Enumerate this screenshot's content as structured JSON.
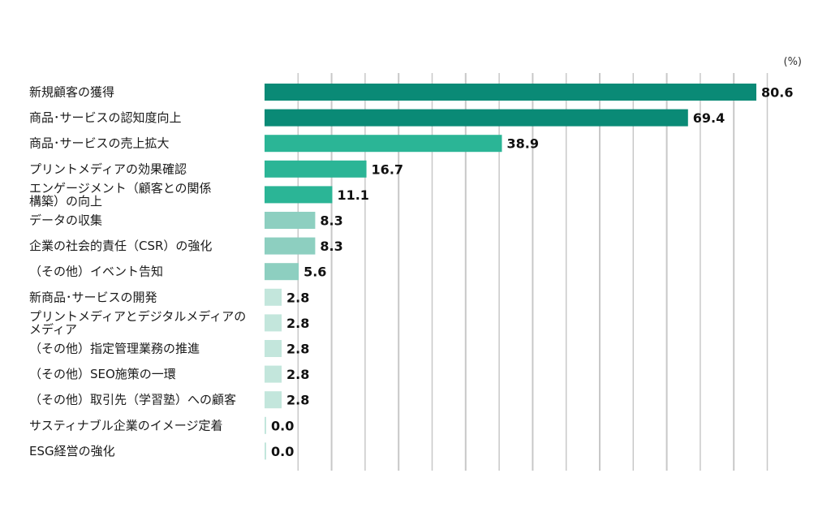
{
  "chart_data": {
    "type": "bar",
    "orientation": "horizontal",
    "unit": "(%)",
    "xlim": [
      0,
      80.6
    ],
    "grid": true,
    "categories": [
      [
        "新規顧客の獲得"
      ],
      [
        "商品･サービスの認知度向上"
      ],
      [
        "商品･サービスの売上拡大"
      ],
      [
        "プリントメディアの効果確認"
      ],
      [
        "エンゲージメント（顧客との関係",
        "構築）の向上"
      ],
      [
        "データの収集"
      ],
      [
        "企業の社会的責任（CSR）の強化"
      ],
      [
        "（その他）イベント告知"
      ],
      [
        "新商品･サービスの開発"
      ],
      [
        "プリントメディアとデジタルメディアの",
        "メディア"
      ],
      [
        "（その他）指定管理業務の推進"
      ],
      [
        "（その他）SEO施策の一環"
      ],
      [
        "（その他）取引先（学習塾）への顧客"
      ],
      [
        "サスティナブル企業のイメージ定着"
      ],
      [
        "ESG経営の強化"
      ]
    ],
    "values": [
      80.6,
      69.4,
      38.9,
      16.7,
      11.1,
      8.3,
      8.3,
      5.6,
      2.8,
      2.8,
      2.8,
      2.8,
      2.8,
      0.0,
      0.0
    ],
    "value_labels": [
      "80.6",
      "69.4",
      "38.9",
      "16.7",
      "11.1",
      "8.3",
      "8.3",
      "5.6",
      "2.8",
      "2.8",
      "2.8",
      "2.8",
      "2.8",
      "0.0",
      "0.0"
    ],
    "colors": {
      "dark": "#0a8a76",
      "medium": "#2bb596",
      "light": "#8dcfc0",
      "pale": "#c3e6dc",
      "grid": "#c8c8c8"
    }
  }
}
